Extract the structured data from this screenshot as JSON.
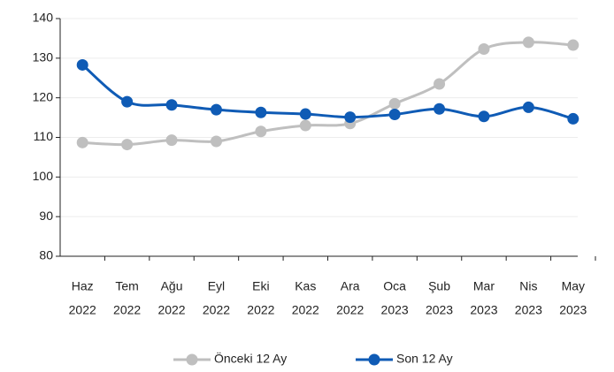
{
  "chart_data": {
    "type": "line",
    "categories": [
      [
        "Haz",
        "2022"
      ],
      [
        "Tem",
        "2022"
      ],
      [
        "Ağu",
        "2022"
      ],
      [
        "Eyl",
        "2022"
      ],
      [
        "Eki",
        "2022"
      ],
      [
        "Kas",
        "2022"
      ],
      [
        "Ara",
        "2022"
      ],
      [
        "Oca",
        "2023"
      ],
      [
        "Şub",
        "2023"
      ],
      [
        "Mar",
        "2023"
      ],
      [
        "Nis",
        "2023"
      ],
      [
        "May",
        "2023"
      ]
    ],
    "series": [
      {
        "name": "Önceki 12 Ay",
        "color": "#bfbfbf",
        "values": [
          108.7,
          108.2,
          109.3,
          109.0,
          111.5,
          113.0,
          113.5,
          118.5,
          123.5,
          132.3,
          134.0,
          133.3
        ]
      },
      {
        "name": "Son 12 Ay",
        "color": "#0f5bb5",
        "values": [
          128.3,
          119.0,
          118.2,
          117.0,
          116.3,
          115.9,
          115.1,
          115.8,
          117.2,
          115.3,
          117.6,
          114.7
        ]
      }
    ],
    "ylim": [
      80,
      140
    ],
    "yticks": [
      80,
      90,
      100,
      110,
      120,
      130,
      140
    ],
    "grid": true,
    "legend": "bottom"
  }
}
